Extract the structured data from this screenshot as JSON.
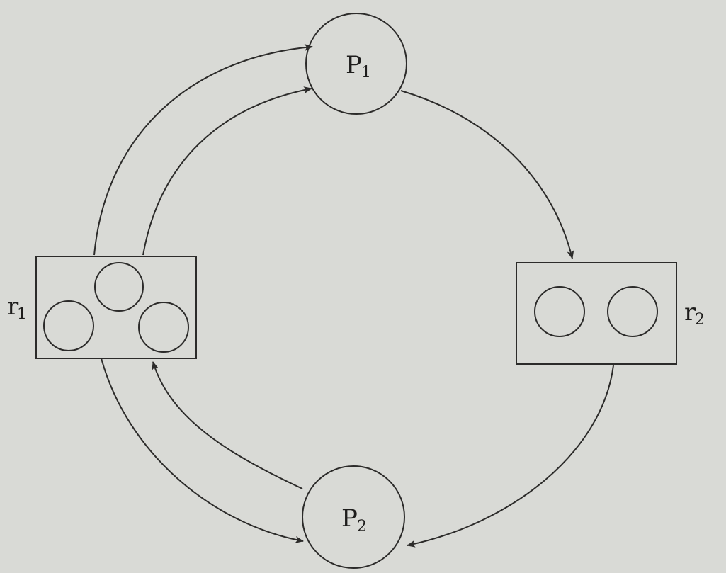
{
  "diagram": {
    "processes": [
      {
        "id": "P1",
        "letter": "P",
        "sub": "1"
      },
      {
        "id": "P2",
        "letter": "P",
        "sub": "2"
      }
    ],
    "resources": [
      {
        "id": "r1",
        "letter": "r",
        "sub": "1",
        "instances": 3
      },
      {
        "id": "r2",
        "letter": "r",
        "sub": "2",
        "instances": 2
      }
    ],
    "edges": [
      {
        "from": "r1",
        "to": "P1",
        "kind": "assignment"
      },
      {
        "from": "r1",
        "to": "P1",
        "kind": "assignment"
      },
      {
        "from": "P1",
        "to": "r2",
        "kind": "request"
      },
      {
        "from": "r2",
        "to": "P2",
        "kind": "assignment"
      },
      {
        "from": "r1",
        "to": "P2",
        "kind": "assignment"
      },
      {
        "from": "P2",
        "to": "r1",
        "kind": "request"
      }
    ],
    "colors": {
      "ink": "#2c2b2a",
      "paper": "#d9dad6"
    }
  }
}
